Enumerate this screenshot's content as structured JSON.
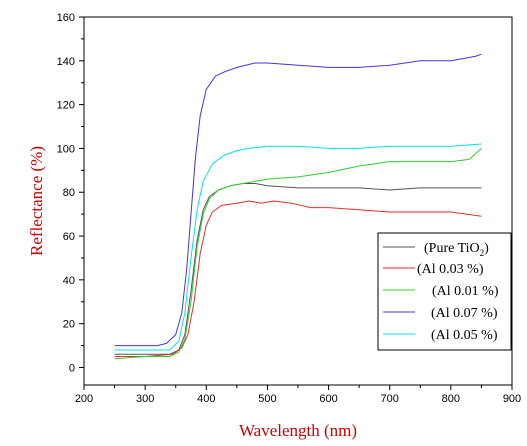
{
  "chart_data": {
    "type": "line",
    "title": "",
    "xlabel": "Wavelength (nm)",
    "ylabel": "Reflectance (%)",
    "xlim": [
      200,
      900
    ],
    "ylim": [
      -8,
      160
    ],
    "xticks": [
      200,
      300,
      400,
      500,
      600,
      700,
      800,
      900
    ],
    "yticks": [
      0,
      20,
      40,
      60,
      80,
      100,
      120,
      140,
      160
    ],
    "grid": false,
    "legend_position": "bottom-right",
    "axis_colors": {
      "xlabel": "#cc0000",
      "ylabel": "#cc0000"
    },
    "series": [
      {
        "name_main": "(Pure TiO",
        "name_sub": "2",
        "name_end": ")",
        "color": "#555555",
        "points": [
          [
            250,
            6
          ],
          [
            300,
            6
          ],
          [
            340,
            6
          ],
          [
            355,
            8
          ],
          [
            365,
            15
          ],
          [
            375,
            35
          ],
          [
            385,
            58
          ],
          [
            395,
            72
          ],
          [
            405,
            78
          ],
          [
            420,
            81
          ],
          [
            440,
            83
          ],
          [
            460,
            84
          ],
          [
            480,
            84
          ],
          [
            500,
            83
          ],
          [
            550,
            82
          ],
          [
            600,
            82
          ],
          [
            650,
            82
          ],
          [
            700,
            81
          ],
          [
            750,
            82
          ],
          [
            800,
            82
          ],
          [
            850,
            82
          ]
        ]
      },
      {
        "name": "(Al  0.03 %)",
        "color": "#e03030",
        "points": [
          [
            250,
            5
          ],
          [
            300,
            5
          ],
          [
            345,
            6
          ],
          [
            360,
            9
          ],
          [
            370,
            15
          ],
          [
            380,
            30
          ],
          [
            390,
            52
          ],
          [
            400,
            65
          ],
          [
            410,
            71
          ],
          [
            425,
            74
          ],
          [
            450,
            75
          ],
          [
            470,
            76
          ],
          [
            490,
            75
          ],
          [
            510,
            76
          ],
          [
            540,
            75
          ],
          [
            570,
            73
          ],
          [
            600,
            73
          ],
          [
            650,
            72
          ],
          [
            700,
            71
          ],
          [
            750,
            71
          ],
          [
            800,
            71
          ],
          [
            850,
            69
          ]
        ]
      },
      {
        "name": "(Al 0.01 %)",
        "color": "#33cc33",
        "points": [
          [
            250,
            4
          ],
          [
            300,
            5
          ],
          [
            340,
            5
          ],
          [
            355,
            7
          ],
          [
            365,
            13
          ],
          [
            375,
            30
          ],
          [
            385,
            55
          ],
          [
            395,
            70
          ],
          [
            405,
            77
          ],
          [
            420,
            81
          ],
          [
            440,
            83
          ],
          [
            460,
            84
          ],
          [
            480,
            85
          ],
          [
            500,
            86
          ],
          [
            550,
            87
          ],
          [
            600,
            89
          ],
          [
            650,
            92
          ],
          [
            700,
            94
          ],
          [
            750,
            94
          ],
          [
            800,
            94
          ],
          [
            830,
            95
          ],
          [
            850,
            100
          ]
        ]
      },
      {
        "name": "(Al 0.07 %)",
        "color": "#4433dd",
        "points": [
          [
            250,
            10
          ],
          [
            300,
            10
          ],
          [
            320,
            10
          ],
          [
            335,
            11
          ],
          [
            350,
            15
          ],
          [
            360,
            25
          ],
          [
            368,
            45
          ],
          [
            375,
            70
          ],
          [
            382,
            95
          ],
          [
            390,
            115
          ],
          [
            400,
            127
          ],
          [
            415,
            133
          ],
          [
            430,
            135
          ],
          [
            450,
            137
          ],
          [
            480,
            139
          ],
          [
            500,
            139
          ],
          [
            550,
            138
          ],
          [
            600,
            137
          ],
          [
            650,
            137
          ],
          [
            700,
            138
          ],
          [
            750,
            140
          ],
          [
            800,
            140
          ],
          [
            840,
            142
          ],
          [
            850,
            143
          ]
        ]
      },
      {
        "name": "(Al 0.05 %)",
        "color": "#00e5e5",
        "points": [
          [
            250,
            8
          ],
          [
            300,
            8
          ],
          [
            340,
            8
          ],
          [
            355,
            12
          ],
          [
            365,
            25
          ],
          [
            375,
            50
          ],
          [
            385,
            72
          ],
          [
            395,
            85
          ],
          [
            410,
            93
          ],
          [
            430,
            97
          ],
          [
            450,
            99
          ],
          [
            470,
            100
          ],
          [
            500,
            101
          ],
          [
            550,
            101
          ],
          [
            600,
            100
          ],
          [
            650,
            100
          ],
          [
            700,
            101
          ],
          [
            750,
            101
          ],
          [
            800,
            101
          ],
          [
            850,
            102
          ]
        ]
      }
    ]
  }
}
